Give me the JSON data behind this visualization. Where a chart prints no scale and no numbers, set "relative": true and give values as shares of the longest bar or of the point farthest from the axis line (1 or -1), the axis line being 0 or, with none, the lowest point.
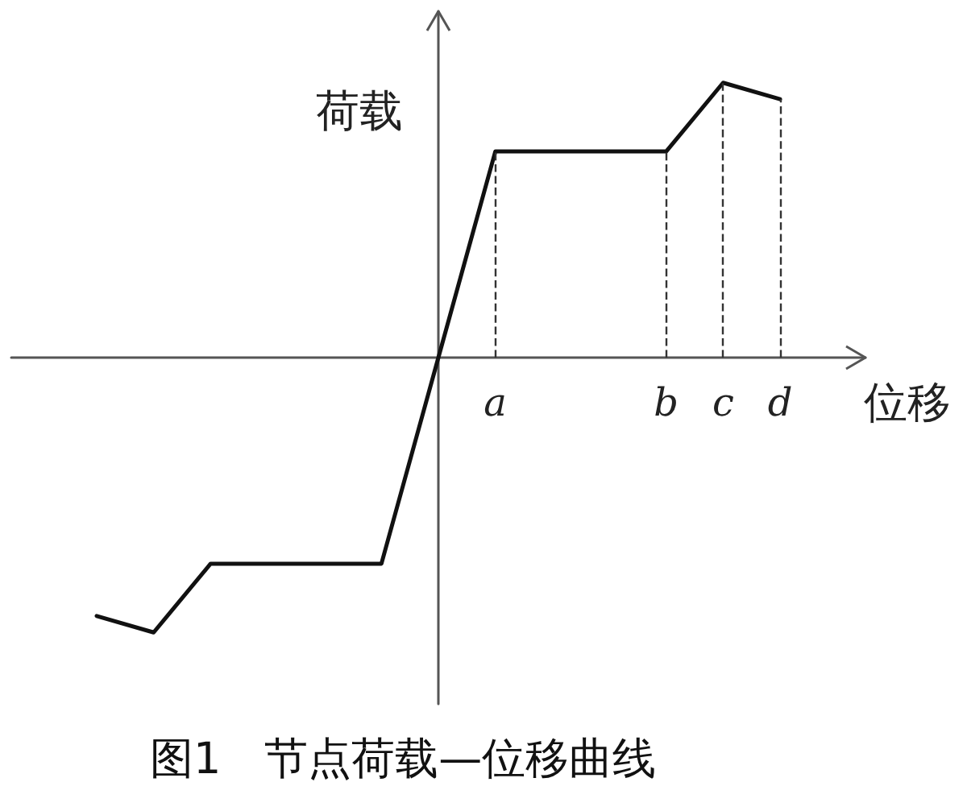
{
  "chart_data": {
    "type": "line",
    "title": "图1　节点荷载—位移曲线",
    "xlabel": "位移",
    "ylabel": "荷载",
    "categories": [
      null,
      null,
      null,
      null,
      null,
      null,
      null,
      null,
      "a",
      null,
      null,
      "b",
      "c",
      "d",
      null
    ],
    "values": [
      null,
      -0.94,
      -1,
      -0.75,
      -0.75,
      -0.75,
      -0.75,
      0,
      0.75,
      0.75,
      0.75,
      0.75,
      1,
      0.94,
      null
    ],
    "color": "#111111",
    "relative": true,
    "tick_labels": "x",
    "marker": "none",
    "line_style": "solid",
    "ref_lines": [
      {
        "axis": "x",
        "value": "a",
        "line_style": "dashed"
      },
      {
        "axis": "x",
        "value": "b",
        "line_style": "dashed"
      },
      {
        "axis": "x",
        "value": "c",
        "line_style": "dashed"
      },
      {
        "axis": "x",
        "value": "d",
        "line_style": "dashed"
      }
    ]
  }
}
